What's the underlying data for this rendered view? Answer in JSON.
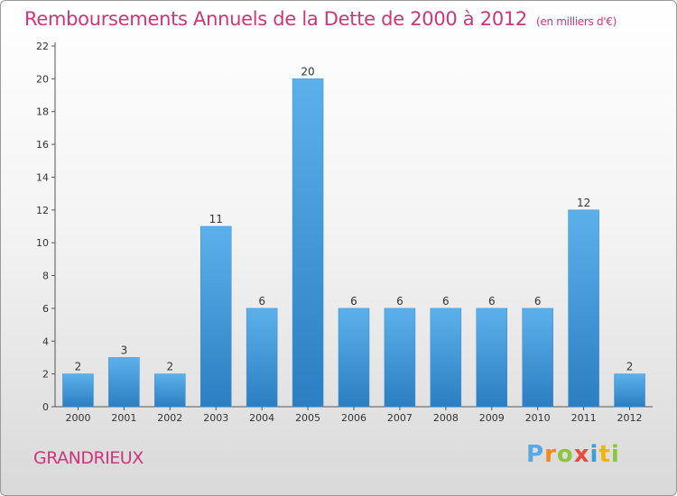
{
  "chart_data": {
    "type": "bar",
    "title": "Remboursements Annuels de la Dette de 2000 à 2012",
    "subtitle": "(en milliers d'€)",
    "categories": [
      "2000",
      "2001",
      "2002",
      "2003",
      "2004",
      "2005",
      "2006",
      "2007",
      "2008",
      "2009",
      "2010",
      "2011",
      "2012"
    ],
    "values": [
      2,
      3,
      2,
      11,
      6,
      20,
      6,
      6,
      6,
      6,
      6,
      12,
      2
    ],
    "ylim": [
      0,
      22
    ],
    "yticks": [
      0,
      2,
      4,
      6,
      8,
      10,
      12,
      14,
      16,
      18,
      20,
      22
    ],
    "grid": false,
    "data_labels": true,
    "colors": {
      "bar_light": "#5cb0ea",
      "bar_dark": "#2b7fc2",
      "title": "#d0357a",
      "axis": "#444444"
    }
  },
  "footer": {
    "commune": "GRANDRIEUX",
    "brand_letters": [
      "P",
      "r",
      "o",
      "x",
      "i",
      "t",
      "i"
    ]
  }
}
